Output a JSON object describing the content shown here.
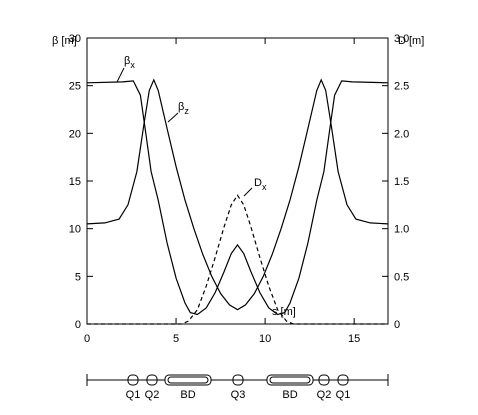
{
  "chart_data": {
    "type": "line",
    "ylabel": "β [m]",
    "y2label": "D [m]",
    "xlabel": "s [m]",
    "xlim": [
      0,
      16.9
    ],
    "xticks": [
      0,
      5,
      10,
      15
    ],
    "ylim": [
      0,
      30
    ],
    "yticks": [
      0,
      5,
      10,
      15,
      20,
      25,
      30
    ],
    "y2lim": [
      0,
      3
    ],
    "y2ticks": [
      0,
      0.5,
      {
        "value": 1,
        "label": "1.0"
      },
      1.5,
      {
        "value": 2,
        "label": "2.0"
      },
      2.5,
      {
        "value": 3,
        "label": "3.0"
      }
    ],
    "series": [
      {
        "name": "β",
        "sub": "x",
        "color": "#000000",
        "dash": false,
        "x": [
          0,
          2,
          2.6,
          3,
          3.3,
          3.6,
          4,
          4.5,
          5,
          5.5,
          5.8,
          6.2,
          6.7,
          7.2,
          7.7,
          8.1,
          8.45,
          8.8,
          9.2,
          9.7,
          10.2,
          10.7,
          11.1,
          11.4,
          11.9,
          12.4,
          12.9,
          13.3,
          13.6,
          13.9,
          14.3,
          14.9,
          16.9
        ],
        "values": [
          25.3,
          25.4,
          25.5,
          24,
          20,
          16,
          13,
          8.5,
          4.8,
          2.2,
          1.2,
          1.0,
          1.7,
          3.3,
          5.5,
          7.4,
          8.3,
          7.4,
          5.5,
          3.3,
          1.7,
          1.0,
          1.2,
          2.2,
          4.8,
          8.5,
          13,
          16,
          20,
          24,
          25.5,
          25.4,
          25.3
        ]
      },
      {
        "name": "β",
        "sub": "z",
        "color": "#000000",
        "dash": false,
        "x": [
          0,
          1,
          1.8,
          2.3,
          2.8,
          3.2,
          3.5,
          3.75,
          4,
          4.5,
          5,
          5.5,
          6,
          6.5,
          7,
          7.5,
          8,
          8.45,
          8.9,
          9.4,
          9.9,
          10.4,
          10.9,
          11.4,
          11.9,
          12.4,
          12.9,
          13.15,
          13.4,
          13.7,
          14.1,
          14.6,
          15.1,
          15.9,
          16.9
        ],
        "values": [
          10.5,
          10.6,
          11,
          12.5,
          16,
          21,
          24.5,
          25.6,
          24.5,
          20.5,
          16.5,
          13,
          10,
          7.3,
          5,
          3.2,
          2,
          1.5,
          2,
          3.2,
          5,
          7.3,
          10,
          13,
          16.5,
          20.5,
          24.5,
          25.6,
          24.5,
          21,
          16,
          12.5,
          11,
          10.6,
          10.5
        ]
      },
      {
        "name": "D",
        "sub": "x",
        "color": "#000000",
        "dash": true,
        "axis": "y2",
        "x": [
          0,
          5.3,
          5.7,
          6.2,
          6.7,
          7.2,
          7.7,
          8.1,
          8.45,
          8.8,
          9.2,
          9.7,
          10.2,
          10.7,
          11.2,
          11.6,
          16.9
        ],
        "values": [
          0,
          0,
          0.03,
          0.15,
          0.4,
          0.7,
          1.02,
          1.25,
          1.35,
          1.25,
          1.02,
          0.7,
          0.4,
          0.15,
          0.03,
          0,
          0
        ]
      }
    ],
    "lattice": [
      "Q1",
      "Q2",
      "BD",
      "Q3",
      "BD",
      "Q2",
      "Q1"
    ]
  }
}
